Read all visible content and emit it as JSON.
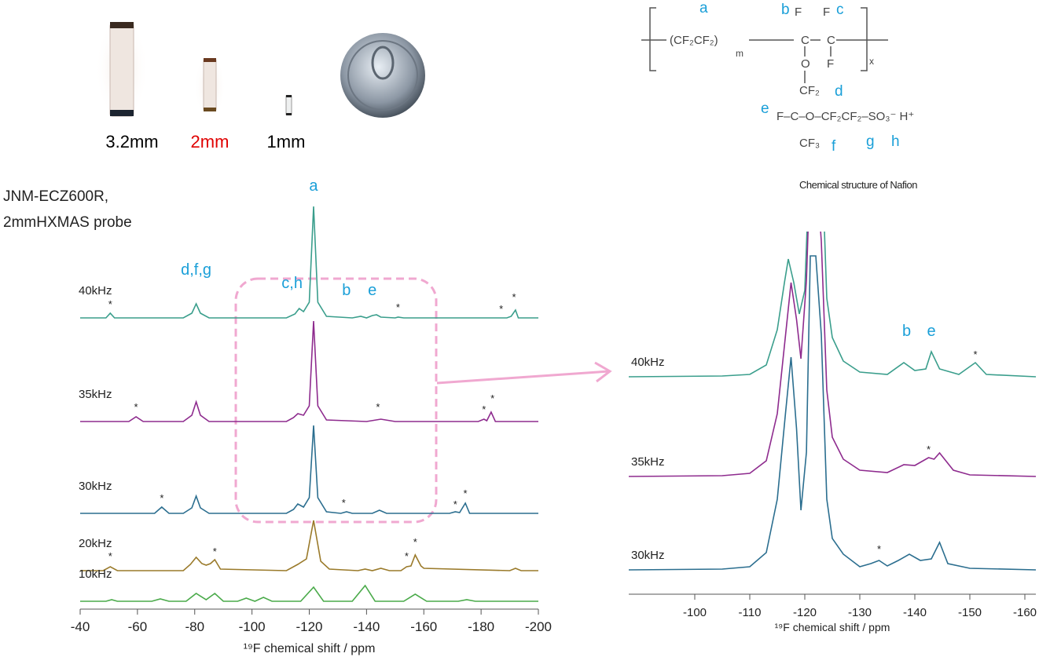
{
  "probes": [
    {
      "label": "3.2mm",
      "color": "#000000"
    },
    {
      "label": "2mm",
      "color": "#e00000"
    },
    {
      "label": "1mm",
      "color": "#000000"
    }
  ],
  "instrument": [
    "JNM-ECZ600R,",
    "2mmHXMAS probe"
  ],
  "structure": {
    "items": [
      "a",
      "b",
      "F",
      "F",
      "c",
      "(CF₂CF₂)",
      "m",
      "C",
      "C",
      "O",
      "F",
      "x",
      "CF₂",
      "d",
      "e",
      "F–C–O–CF₂CF₂–SO₃⁻  H⁺",
      "CF₃",
      "f",
      "g",
      "h"
    ],
    "caption": "Chemical structure of Nafion"
  },
  "chart_data": [
    {
      "type": "line",
      "xlabel": "¹⁹F chemical shift / ppm",
      "xlim": [
        -40,
        -200
      ],
      "xticks": [
        -40,
        -60,
        -80,
        -100,
        -120,
        -140,
        -160,
        -180,
        -200
      ],
      "series": [
        {
          "name": "40kHz",
          "color": "#3a9e8c",
          "x": [
            -40,
            -49,
            -50.5,
            -52,
            -76,
            -79,
            -80.5,
            -82,
            -85,
            -112,
            -115,
            -116.5,
            -118,
            -120,
            -121.5,
            -123,
            -126,
            -135,
            -138,
            -140,
            -142,
            -143.5,
            -145,
            -150,
            -151,
            -153,
            -189,
            -190.5,
            -192,
            -193,
            -200
          ],
          "values": [
            0,
            0,
            6,
            0,
            0,
            6,
            18,
            6,
            0,
            0,
            5,
            12,
            8,
            20,
            142,
            20,
            2,
            0,
            2,
            0,
            3,
            4,
            1,
            0,
            1,
            0,
            0,
            2,
            10,
            0,
            0
          ]
        },
        {
          "name": "35kHz",
          "color": "#8e2b8e",
          "x": [
            -40,
            -57,
            -59.5,
            -62,
            -76,
            -79,
            -80.5,
            -82,
            -85,
            -112,
            -114.5,
            -116,
            -118,
            -120,
            -121.5,
            -123,
            -126,
            -140,
            -145,
            -150,
            -179,
            -181,
            -182,
            -183.5,
            -185,
            -200
          ],
          "values": [
            0,
            0,
            6,
            0,
            0,
            8,
            25,
            8,
            0,
            0,
            5,
            10,
            8,
            20,
            128,
            20,
            2,
            0,
            3,
            0,
            0,
            3,
            1,
            12,
            0,
            0
          ]
        },
        {
          "name": "30kHz",
          "color": "#2b6e8f",
          "x": [
            -40,
            -66,
            -68.5,
            -71,
            -76,
            -79,
            -80.5,
            -82,
            -85,
            -112,
            -114.5,
            -116,
            -118,
            -120,
            -121.5,
            -123,
            -126,
            -131,
            -133,
            -135,
            -142,
            -144.5,
            -147,
            -169,
            -171,
            -172.5,
            -174.5,
            -176,
            -200
          ],
          "values": [
            0,
            0,
            8,
            0,
            0,
            7,
            22,
            7,
            0,
            0,
            5,
            12,
            8,
            20,
            112,
            20,
            2,
            0,
            2,
            0,
            0,
            4,
            0,
            0,
            2,
            1,
            13,
            0,
            0
          ]
        },
        {
          "name": "20kHz",
          "color": "#9a7a2a",
          "x": [
            -40,
            -48,
            -50.5,
            -53,
            -76,
            -78.5,
            -80.5,
            -82.5,
            -84,
            -85.5,
            -87,
            -89,
            -112,
            -116,
            -119,
            -121.5,
            -124,
            -127,
            -137,
            -139.5,
            -142,
            -145,
            -148,
            -152,
            -154,
            -155.5,
            -157,
            -159,
            -160,
            -190,
            -192,
            -194,
            -200
          ],
          "values": [
            0,
            0,
            5,
            0,
            0,
            8,
            17,
            9,
            7,
            9,
            14,
            2,
            0,
            8,
            15,
            64,
            12,
            2,
            0,
            2,
            0,
            3,
            0,
            0,
            5,
            6,
            20,
            6,
            3,
            0,
            3,
            0,
            0
          ]
        },
        {
          "name": "10kHz",
          "color": "#4aaa4a",
          "x": [
            -40,
            -49,
            -51,
            -53,
            -65,
            -68,
            -71,
            -77,
            -80.5,
            -84,
            -87,
            -90,
            -95,
            -98,
            -101,
            -104,
            -107,
            -117,
            -121.5,
            -125,
            -135,
            -139.5,
            -143,
            -153,
            -157,
            -161,
            -172,
            -175,
            -178,
            -200
          ],
          "values": [
            0,
            0,
            2,
            0,
            0,
            3,
            0,
            0,
            10,
            2,
            10,
            0,
            0,
            4,
            0,
            5,
            0,
            0,
            18,
            0,
            0,
            20,
            0,
            0,
            9,
            0,
            0,
            2,
            0,
            0
          ]
        }
      ],
      "annotations": [
        {
          "text": "a",
          "series": 0,
          "x": -121.5,
          "y": 162,
          "color": "#1a9fd8"
        },
        {
          "text": "d,f,g",
          "series": 0,
          "x": -80.5,
          "y": 55,
          "color": "#1a9fd8"
        },
        {
          "text": "c,h",
          "series": 0,
          "x": -114,
          "y": 38,
          "color": "#1a9fd8"
        },
        {
          "text": "b",
          "series": 0,
          "x": -133,
          "y": 29,
          "color": "#1a9fd8"
        },
        {
          "text": "e",
          "series": 0,
          "x": -142,
          "y": 29,
          "color": "#1a9fd8"
        },
        {
          "text": "*",
          "series": 0,
          "x": -50.5,
          "y": 13,
          "color": "#222222"
        },
        {
          "text": "*",
          "series": 0,
          "x": -151,
          "y": 9,
          "color": "#222222"
        },
        {
          "text": "*",
          "series": 0,
          "x": -187,
          "y": 7,
          "color": "#222222"
        },
        {
          "text": "*",
          "series": 0,
          "x": -191.5,
          "y": 22,
          "color": "#222222"
        },
        {
          "text": "*",
          "series": 1,
          "x": -59.5,
          "y": 14,
          "color": "#222222"
        },
        {
          "text": "*",
          "series": 1,
          "x": -144,
          "y": 14,
          "color": "#222222"
        },
        {
          "text": "*",
          "series": 1,
          "x": -181,
          "y": 11,
          "color": "#222222"
        },
        {
          "text": "*",
          "series": 1,
          "x": -184,
          "y": 25,
          "color": "#222222"
        },
        {
          "text": "*",
          "series": 2,
          "x": -68.5,
          "y": 15,
          "color": "#222222"
        },
        {
          "text": "*",
          "series": 2,
          "x": -132,
          "y": 9,
          "color": "#222222"
        },
        {
          "text": "*",
          "series": 2,
          "x": -171,
          "y": 7,
          "color": "#222222"
        },
        {
          "text": "*",
          "series": 2,
          "x": -174.5,
          "y": 21,
          "color": "#222222"
        },
        {
          "text": "*",
          "series": 3,
          "x": -50.5,
          "y": 14,
          "color": "#222222"
        },
        {
          "text": "*",
          "series": 3,
          "x": -87,
          "y": 20,
          "color": "#222222"
        },
        {
          "text": "*",
          "series": 3,
          "x": -154,
          "y": 14,
          "color": "#222222"
        },
        {
          "text": "*",
          "series": 3,
          "x": -157,
          "y": 32,
          "color": "#222222"
        }
      ]
    },
    {
      "type": "line",
      "xlabel": "¹⁹F chemical shift / ppm",
      "xlim": [
        -88,
        -162
      ],
      "xticks": [
        -100,
        -110,
        -120,
        -130,
        -140,
        -150,
        -160
      ],
      "series": [
        {
          "name": "40kHz",
          "color": "#3a9e8c",
          "x": [
            -88,
            -105,
            -110,
            -113,
            -115,
            -116.3,
            -117,
            -118,
            -119,
            -120,
            -121,
            -122,
            -123,
            -124,
            -125,
            -127,
            -130,
            -135,
            -138,
            -140,
            -142,
            -143,
            -144.5,
            -148,
            -151,
            -153,
            -162
          ],
          "values": [
            0,
            1,
            3,
            15,
            60,
            120,
            150,
            120,
            80,
            110,
            300,
            400,
            300,
            100,
            50,
            20,
            6,
            3,
            18,
            8,
            10,
            32,
            10,
            3,
            18,
            3,
            0
          ]
        },
        {
          "name": "35kHz",
          "color": "#8e2b8e",
          "x": [
            -88,
            -105,
            -110,
            -113,
            -115,
            -116.5,
            -117.5,
            -118.5,
            -119.3,
            -120.3,
            -121,
            -122,
            -123,
            -124,
            -125,
            -127,
            -130,
            -135,
            -138,
            -140,
            -142.5,
            -143.5,
            -144.5,
            -147,
            -150,
            -162
          ],
          "values": [
            0,
            1,
            4,
            20,
            80,
            180,
            247,
            200,
            150,
            250,
            400,
            400,
            300,
            110,
            50,
            22,
            8,
            5,
            15,
            14,
            24,
            22,
            30,
            8,
            2,
            0
          ]
        },
        {
          "name": "30kHz",
          "color": "#2b6e8f",
          "x": [
            -88,
            -105,
            -110,
            -113,
            -115,
            -116.5,
            -117.5,
            -118.5,
            -119.3,
            -120.3,
            -121,
            -122,
            -123,
            -124,
            -125,
            -127,
            -130,
            -132,
            -133.5,
            -135,
            -137,
            -139,
            -141,
            -143,
            -144.5,
            -146,
            -150,
            -162
          ],
          "values": [
            0,
            1,
            4,
            22,
            90,
            200,
            271,
            180,
            76,
            150,
            400,
            400,
            300,
            90,
            40,
            20,
            4,
            8,
            12,
            5,
            12,
            20,
            12,
            14,
            35,
            8,
            2,
            0
          ]
        }
      ],
      "annotations": [
        {
          "text": "b",
          "series": 0,
          "x": -138.5,
          "y": 52,
          "color": "#1a9fd8"
        },
        {
          "text": "e",
          "series": 0,
          "x": -143,
          "y": 52,
          "color": "#1a9fd8"
        },
        {
          "text": "*",
          "series": 0,
          "x": -151,
          "y": 24,
          "color": "#222222"
        },
        {
          "text": "*",
          "series": 1,
          "x": -142.5,
          "y": 30,
          "color": "#222222"
        },
        {
          "text": "*",
          "series": 2,
          "x": -133.5,
          "y": 22,
          "color": "#222222"
        }
      ]
    }
  ]
}
